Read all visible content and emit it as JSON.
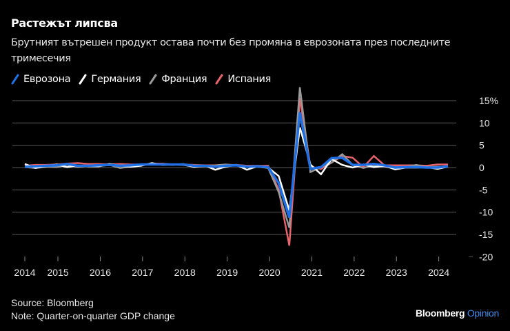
{
  "header": {
    "title": "Растежът липсва",
    "subtitle": "Брутният вътрешен продукт остава почти без промяна в еврозоната през последните тримесечия"
  },
  "legend": [
    {
      "label": "Еврозона",
      "color": "#1f6fe5"
    },
    {
      "label": "Германия",
      "color": "#ffffff"
    },
    {
      "label": "Франция",
      "color": "#9a9a9a"
    },
    {
      "label": "Испания",
      "color": "#e8646a"
    }
  ],
  "footer": {
    "source": "Source: Bloomberg",
    "note": "Note: Quarter-on-quarter GDP change",
    "brand_main": "Bloomberg",
    "brand_sub": "Opinion"
  },
  "chart_data": {
    "type": "line",
    "title": "Растежът липсва",
    "subtitle": "Брутният вътрешен продукт остава почти без промяна в еврозоната през последните тримесечия",
    "xlabel": "",
    "ylabel": "Quarter-on-quarter GDP change (%)",
    "ylim": [
      -20,
      15
    ],
    "yticks": [
      "15%",
      "10",
      "5",
      "0",
      "-5",
      "-10",
      "-15",
      "-20"
    ],
    "ytick_values": [
      15,
      10,
      5,
      0,
      -5,
      -10,
      -15,
      -20
    ],
    "xticks": [
      "2014",
      "2015",
      "2016",
      "2017",
      "2018",
      "2019",
      "2020",
      "2021",
      "2022",
      "2023",
      "2024"
    ],
    "grid": true,
    "legend_position": "top-left",
    "x": [
      "2014Q1",
      "2014Q2",
      "2014Q3",
      "2014Q4",
      "2015Q1",
      "2015Q2",
      "2015Q3",
      "2015Q4",
      "2016Q1",
      "2016Q2",
      "2016Q3",
      "2016Q4",
      "2017Q1",
      "2017Q2",
      "2017Q3",
      "2017Q4",
      "2018Q1",
      "2018Q2",
      "2018Q3",
      "2018Q4",
      "2019Q1",
      "2019Q2",
      "2019Q3",
      "2019Q4",
      "2020Q1",
      "2020Q2",
      "2020Q3",
      "2020Q4",
      "2021Q1",
      "2021Q2",
      "2021Q3",
      "2021Q4",
      "2022Q1",
      "2022Q2",
      "2022Q3",
      "2022Q4",
      "2023Q1",
      "2023Q2",
      "2023Q3",
      "2023Q4",
      "2024Q1"
    ],
    "series": [
      {
        "name": "Еврозона",
        "color": "#1f6fe5",
        "values": [
          0.2,
          0.3,
          0.4,
          0.5,
          0.8,
          0.4,
          0.4,
          0.5,
          0.6,
          0.4,
          0.5,
          0.7,
          0.7,
          0.7,
          0.7,
          0.7,
          0.4,
          0.4,
          0.2,
          0.4,
          0.5,
          0.2,
          0.3,
          0.1,
          -3.5,
          -11.2,
          12.4,
          -0.3,
          0.1,
          2.1,
          2.2,
          0.6,
          0.6,
          0.8,
          0.5,
          0.0,
          0.1,
          0.1,
          0.0,
          0.0,
          0.3
        ]
      },
      {
        "name": "Германия",
        "color": "#ffffff",
        "values": [
          0.8,
          -0.1,
          0.3,
          0.7,
          0.1,
          0.5,
          0.3,
          0.3,
          0.8,
          0.4,
          0.2,
          0.4,
          1.0,
          0.6,
          0.7,
          0.6,
          0.2,
          0.5,
          -0.5,
          0.2,
          0.6,
          -0.5,
          0.3,
          0.0,
          -1.9,
          -9.6,
          9.0,
          0.7,
          -1.5,
          1.9,
          0.6,
          0.0,
          0.7,
          0.1,
          0.4,
          -0.4,
          0.0,
          0.0,
          0.1,
          -0.3,
          0.2
        ]
      },
      {
        "name": "Франция",
        "color": "#9a9a9a",
        "values": [
          0.1,
          -0.1,
          0.2,
          0.1,
          0.6,
          0.1,
          0.4,
          0.3,
          0.6,
          -0.1,
          0.2,
          0.5,
          0.8,
          0.7,
          0.6,
          0.8,
          0.1,
          0.3,
          0.5,
          0.7,
          0.5,
          0.3,
          0.2,
          -0.1,
          -5.5,
          -13.5,
          18.0,
          -1.0,
          0.1,
          1.1,
          3.0,
          0.6,
          -0.1,
          0.5,
          0.2,
          0.1,
          0.1,
          0.6,
          0.1,
          0.2,
          0.2
        ]
      },
      {
        "name": "Испания",
        "color": "#e8646a",
        "values": [
          0.4,
          0.6,
          0.6,
          0.7,
          0.9,
          1.0,
          0.8,
          0.8,
          0.7,
          0.8,
          0.7,
          0.7,
          0.9,
          0.9,
          0.7,
          0.7,
          0.6,
          0.5,
          0.5,
          0.6,
          0.6,
          0.4,
          0.4,
          0.4,
          -5.0,
          -17.5,
          15.6,
          0.2,
          -0.3,
          1.1,
          2.6,
          2.2,
          0.1,
          2.6,
          0.5,
          0.5,
          0.5,
          0.5,
          0.4,
          0.7,
          0.7
        ]
      }
    ]
  }
}
